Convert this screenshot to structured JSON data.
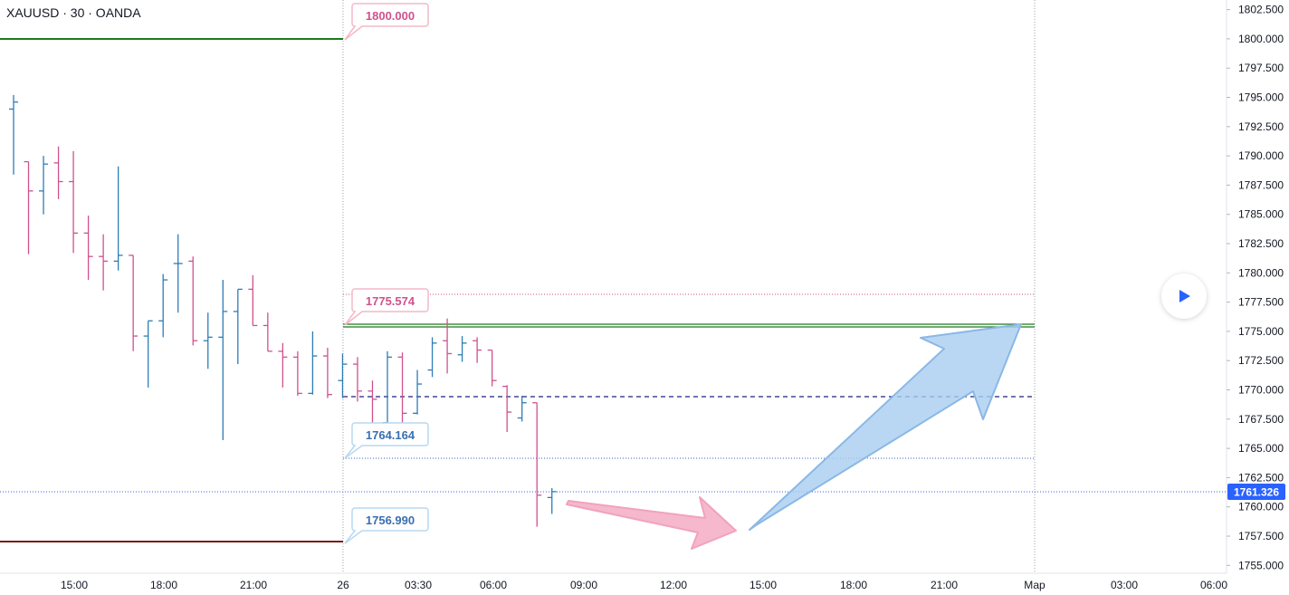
{
  "symbol_title": "XAUUSD · 30 · OANDA",
  "colors": {
    "up": "#2e7db5",
    "down": "#d0518e",
    "green_line": "#1e7a1e",
    "red_line": "#7a1a1a",
    "blue_dashed": "#1a237e",
    "pink_arrow": "#f5b8cc",
    "blue_arrow": "#9cc3ec",
    "price_badge": "#2962ff"
  },
  "chart_data": {
    "type": "ohlc",
    "x_tick_labels": [
      "15:00",
      "18:00",
      "21:00",
      "26",
      "03:30",
      "06:00",
      "09:00",
      "12:00",
      "15:00",
      "18:00",
      "21:00",
      "Мар",
      "03:00",
      "06:00"
    ],
    "y_tick_labels": [
      "1802.500",
      "1800.000",
      "1797.500",
      "1795.000",
      "1792.500",
      "1790.000",
      "1787.500",
      "1785.000",
      "1782.500",
      "1780.000",
      "1777.500",
      "1775.000",
      "1772.500",
      "1770.000",
      "1767.500",
      "1765.000",
      "1762.500",
      "1760.000",
      "1757.500",
      "1755.000"
    ],
    "ylim": [
      1754.5,
      1803.0
    ],
    "bar_interval_minutes": 30,
    "first_bar_time": "25 12:30",
    "bars": [
      {
        "o": 1794.0,
        "h": 1795.2,
        "l": 1788.4,
        "c": 1794.6
      },
      {
        "o": 1789.5,
        "h": 1789.5,
        "l": 1781.6,
        "c": 1787.0
      },
      {
        "o": 1787.0,
        "h": 1790.0,
        "l": 1785.0,
        "c": 1789.3
      },
      {
        "o": 1789.4,
        "h": 1790.8,
        "l": 1786.3,
        "c": 1787.8
      },
      {
        "o": 1787.8,
        "h": 1790.4,
        "l": 1781.7,
        "c": 1783.4
      },
      {
        "o": 1783.4,
        "h": 1784.9,
        "l": 1779.4,
        "c": 1781.4
      },
      {
        "o": 1781.4,
        "h": 1783.3,
        "l": 1778.5,
        "c": 1781.0
      },
      {
        "o": 1781.0,
        "h": 1789.1,
        "l": 1780.2,
        "c": 1781.5
      },
      {
        "o": 1781.5,
        "h": 1781.5,
        "l": 1773.3,
        "c": 1774.6
      },
      {
        "o": 1774.6,
        "h": 1775.9,
        "l": 1770.2,
        "c": 1775.9
      },
      {
        "o": 1775.9,
        "h": 1779.9,
        "l": 1774.5,
        "c": 1779.4
      },
      {
        "o": 1780.8,
        "h": 1783.3,
        "l": 1776.6,
        "c": 1780.8
      },
      {
        "o": 1781.0,
        "h": 1781.4,
        "l": 1773.8,
        "c": 1774.2
      },
      {
        "o": 1774.2,
        "h": 1776.6,
        "l": 1771.8,
        "c": 1774.5
      },
      {
        "o": 1774.5,
        "h": 1779.4,
        "l": 1765.7,
        "c": 1776.7
      },
      {
        "o": 1776.7,
        "h": 1778.6,
        "l": 1772.2,
        "c": 1778.6
      },
      {
        "o": 1778.6,
        "h": 1779.8,
        "l": 1775.5,
        "c": 1775.5
      },
      {
        "o": 1775.5,
        "h": 1776.6,
        "l": 1773.3,
        "c": 1773.3
      },
      {
        "o": 1773.3,
        "h": 1774.0,
        "l": 1770.2,
        "c": 1772.8
      },
      {
        "o": 1772.8,
        "h": 1773.3,
        "l": 1769.5,
        "c": 1769.7
      },
      {
        "o": 1769.7,
        "h": 1775.0,
        "l": 1769.6,
        "c": 1772.9
      },
      {
        "o": 1772.9,
        "h": 1773.6,
        "l": 1769.3,
        "c": 1769.6
      },
      {
        "o": 1770.8,
        "h": 1773.1,
        "l": 1769.3,
        "c": 1772.2
      },
      {
        "o": 1772.2,
        "h": 1772.8,
        "l": 1769.0,
        "c": 1769.9
      },
      {
        "o": 1769.9,
        "h": 1770.8,
        "l": 1766.5,
        "c": 1769.2
      },
      {
        "o": 1767.2,
        "h": 1773.3,
        "l": 1767.0,
        "c": 1772.8
      },
      {
        "o": 1772.8,
        "h": 1773.2,
        "l": 1767.0,
        "c": 1768.0
      },
      {
        "o": 1768.0,
        "h": 1771.7,
        "l": 1767.9,
        "c": 1770.5
      },
      {
        "o": 1771.7,
        "h": 1774.5,
        "l": 1771.1,
        "c": 1774.0
      },
      {
        "o": 1774.2,
        "h": 1776.1,
        "l": 1771.4,
        "c": 1773.1
      },
      {
        "o": 1773.0,
        "h": 1774.6,
        "l": 1772.4,
        "c": 1774.0
      },
      {
        "o": 1774.2,
        "h": 1774.5,
        "l": 1772.3,
        "c": 1773.4
      },
      {
        "o": 1773.4,
        "h": 1773.4,
        "l": 1770.3,
        "c": 1770.8
      },
      {
        "o": 1770.3,
        "h": 1770.4,
        "l": 1766.4,
        "c": 1768.1
      },
      {
        "o": 1767.6,
        "h": 1769.5,
        "l": 1767.3,
        "c": 1768.9
      },
      {
        "o": 1768.9,
        "h": 1768.9,
        "l": 1758.3,
        "c": 1761.0
      },
      {
        "o": 1760.8,
        "h": 1761.6,
        "l": 1759.4,
        "c": 1761.3
      }
    ],
    "horizontal_lines": [
      {
        "name": "high-green",
        "price": 1800.0,
        "color": "green"
      },
      {
        "name": "low-red",
        "price": 1757.0,
        "color": "red"
      },
      {
        "name": "mid-green",
        "price": 1775.5,
        "color": "green"
      },
      {
        "name": "pink-dotted",
        "price": 1778.2,
        "color": "pink"
      },
      {
        "name": "blue-dashed",
        "price": 1769.5,
        "color": "navy"
      },
      {
        "name": "blue-dotted",
        "price": 1764.2,
        "color": "blue"
      },
      {
        "name": "last-price",
        "price": 1761.326,
        "color": "blue"
      }
    ],
    "price_labels": [
      {
        "text": "1800.000",
        "style": "pink"
      },
      {
        "text": "1775.574",
        "style": "pink"
      },
      {
        "text": "1764.164",
        "style": "blue"
      },
      {
        "text": "1756.990",
        "style": "blue"
      }
    ],
    "last_price": "1761.326",
    "grid": false
  }
}
